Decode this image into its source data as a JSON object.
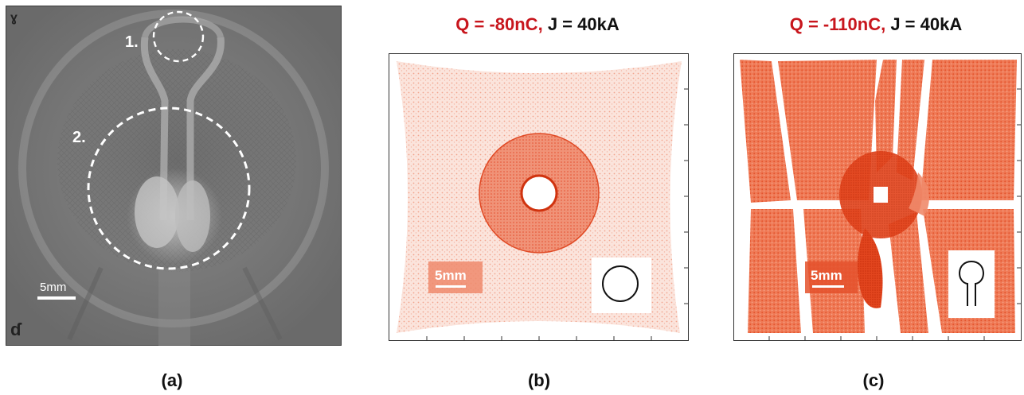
{
  "panel_a": {
    "label_1": "1.",
    "label_2": "2.",
    "scale_text": "5mm",
    "caption": "(a)"
  },
  "panel_b": {
    "title_red": "Q = -80nC,",
    "title_black": "J = 40kA",
    "scale_text": "5mm",
    "caption": "(b)",
    "inset_icon": "circle-loop-icon"
  },
  "panel_c": {
    "title_red": "Q = -110nC,",
    "title_black": "J = 40kA",
    "scale_text": "5mm",
    "caption": "(c)",
    "inset_icon": "keyhole-loop-icon"
  },
  "colors": {
    "title_accent": "#c8161d",
    "particles_light": "#f5b7a5",
    "particles_dense": "#ec5a32"
  }
}
